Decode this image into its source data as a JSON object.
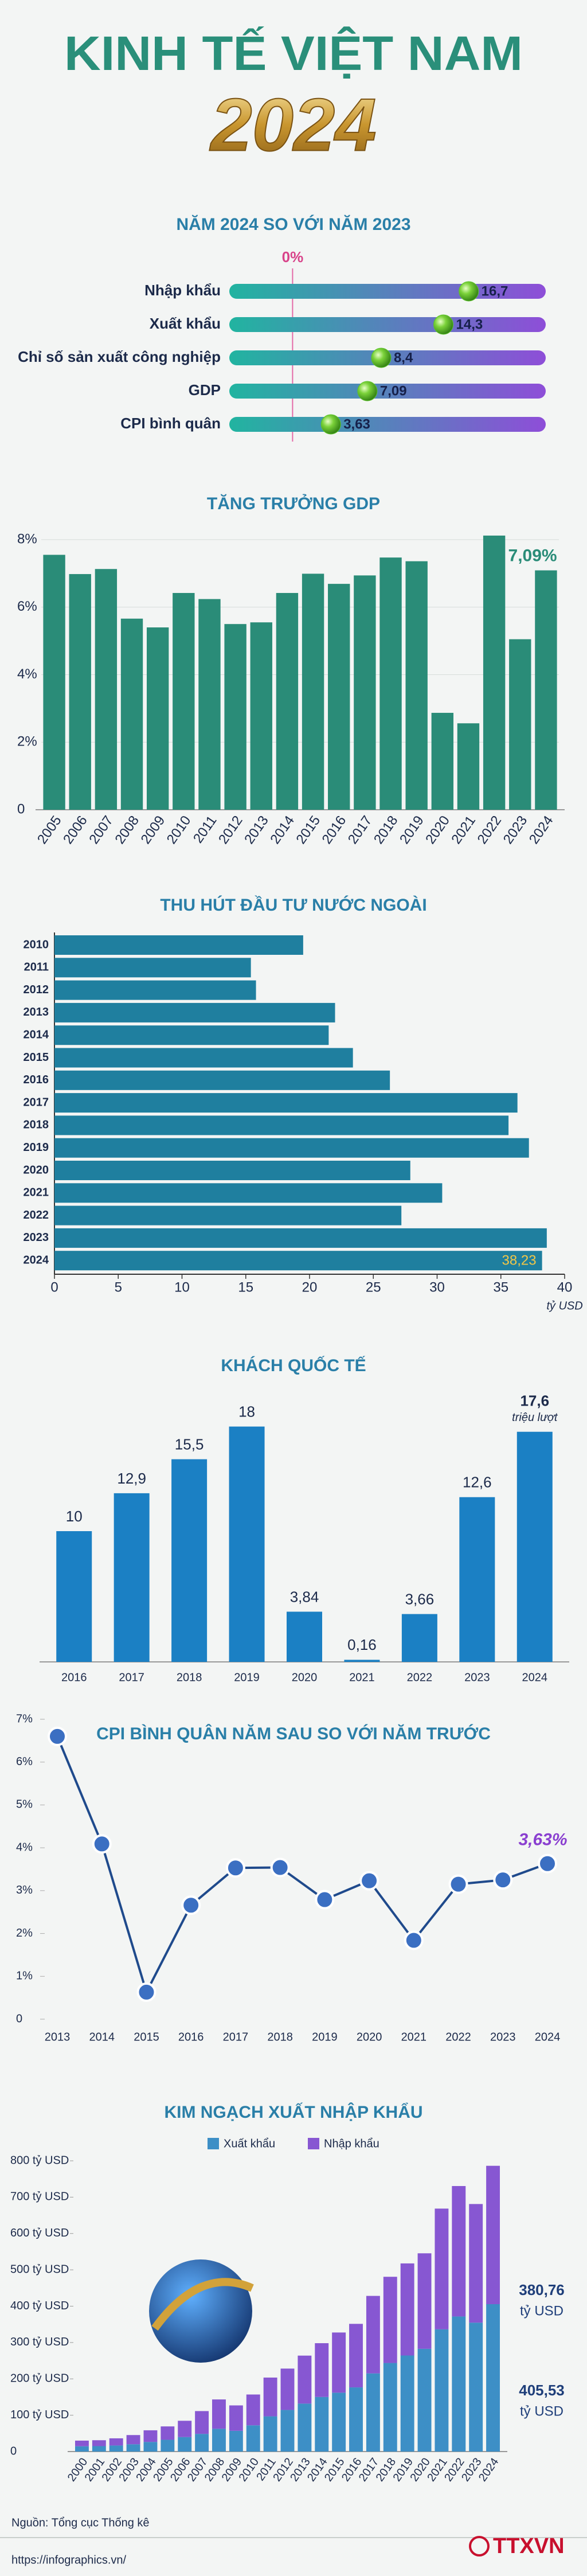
{
  "header": {
    "title": "KINH TẾ VIỆT NAM",
    "year": "2024"
  },
  "chart_data": [
    {
      "type": "dot",
      "title": "NĂM 2024 SO VỚI NĂM 2023",
      "categories": [
        "Nhập khẩu",
        "Xuất khẩu",
        "Chỉ số sản xuất công nghiệp",
        "GDP",
        "CPI bình quân"
      ],
      "values": [
        16.7,
        14.3,
        8.4,
        7.09,
        3.63
      ],
      "value_labels": [
        "16,7",
        "14,3",
        "8,4",
        "7,09",
        "3,63"
      ],
      "xlim": [
        -6,
        24
      ],
      "xticks": [
        {
          "value": 0,
          "label": "0%"
        }
      ],
      "color": "#5cc42a"
    },
    {
      "type": "bar",
      "title": "TĂNG TRƯỞNG GDP",
      "categories": [
        "2005",
        "2006",
        "2007",
        "2008",
        "2009",
        "2010",
        "2011",
        "2012",
        "2013",
        "2014",
        "2015",
        "2016",
        "2017",
        "2018",
        "2019",
        "2020",
        "2021",
        "2022",
        "2023",
        "2024"
      ],
      "values": [
        7.55,
        6.98,
        7.13,
        5.66,
        5.4,
        6.42,
        6.24,
        5.5,
        5.55,
        6.42,
        6.99,
        6.69,
        6.94,
        7.47,
        7.36,
        2.87,
        2.56,
        8.12,
        5.05,
        7.09
      ],
      "value_labels": [
        null,
        null,
        null,
        null,
        null,
        null,
        null,
        null,
        null,
        null,
        null,
        null,
        null,
        null,
        null,
        null,
        null,
        null,
        null,
        "7,09%"
      ],
      "ylim": [
        0,
        8
      ],
      "yticks": [
        0,
        {
          "value": 2,
          "label": "2%"
        },
        {
          "value": 4,
          "label": "4%"
        },
        {
          "value": 6,
          "label": "6%"
        },
        {
          "value": 8,
          "label": "8%"
        }
      ],
      "grid": true,
      "color": "#2a8c78"
    },
    {
      "type": "bar",
      "horizontal": true,
      "title": "THU HÚT ĐẦU TƯ NƯỚC NGOÀI",
      "categories": [
        "2010",
        "2011",
        "2012",
        "2013",
        "2014",
        "2015",
        "2016",
        "2017",
        "2018",
        "2019",
        "2020",
        "2021",
        "2022",
        "2023",
        "2024"
      ],
      "values": [
        19.5,
        15.4,
        15.8,
        22.0,
        21.5,
        23.4,
        26.3,
        36.3,
        35.6,
        37.2,
        27.9,
        30.4,
        27.2,
        38.6,
        38.23
      ],
      "value_labels": [
        null,
        null,
        null,
        null,
        null,
        null,
        null,
        null,
        null,
        null,
        null,
        null,
        null,
        null,
        "38,23"
      ],
      "xlim": [
        0,
        40
      ],
      "xticks": [
        0,
        5,
        10,
        15,
        20,
        25,
        30,
        35,
        40
      ],
      "x_label": "tỷ USD",
      "color": "#1f7f9f"
    },
    {
      "type": "bar",
      "title": "KHÁCH QUỐC TẾ",
      "categories": [
        "2016",
        "2017",
        "2018",
        "2019",
        "2020",
        "2021",
        "2022",
        "2023",
        "2024"
      ],
      "values": [
        10,
        12.9,
        15.5,
        18,
        3.84,
        0.16,
        3.66,
        12.6,
        17.6
      ],
      "value_labels": [
        "10",
        "12,9",
        "15,5",
        "18",
        "3,84",
        "0,16",
        "3,66",
        "12,6",
        "17,6"
      ],
      "value_notes": [
        null,
        null,
        null,
        null,
        null,
        null,
        null,
        null,
        "triệu lượt"
      ],
      "color": "#1b80c4"
    },
    {
      "type": "line",
      "title": "CPI BÌNH QUÂN NĂM SAU SO VỚI NĂM TRƯỚC",
      "categories": [
        "2013",
        "2014",
        "2015",
        "2016",
        "2017",
        "2018",
        "2019",
        "2020",
        "2021",
        "2022",
        "2023",
        "2024"
      ],
      "values": [
        6.6,
        4.09,
        0.63,
        2.66,
        3.53,
        3.54,
        2.79,
        3.23,
        1.84,
        3.15,
        3.25,
        3.63
      ],
      "value_labels": [
        null,
        null,
        null,
        null,
        null,
        null,
        null,
        null,
        null,
        null,
        null,
        "3,63%"
      ],
      "ylim": [
        0,
        7
      ],
      "yticks": [
        0,
        {
          "value": 1,
          "label": "1%"
        },
        {
          "value": 2,
          "label": "2%"
        },
        {
          "value": 3,
          "label": "3%"
        },
        {
          "value": 4,
          "label": "4%"
        },
        {
          "value": 5,
          "label": "5%"
        },
        {
          "value": 6,
          "label": "6%"
        },
        {
          "value": 7,
          "label": "7%"
        }
      ],
      "color": "#1f4a8c"
    },
    {
      "type": "bar",
      "stacked": true,
      "title": "KIM NGẠCH XUẤT NHẬP KHẨU",
      "categories": [
        "2000",
        "2001",
        "2002",
        "2003",
        "2004",
        "2005",
        "2006",
        "2007",
        "2008",
        "2009",
        "2010",
        "2011",
        "2012",
        "2013",
        "2014",
        "2015",
        "2016",
        "2017",
        "2018",
        "2019",
        "2020",
        "2021",
        "2022",
        "2023",
        "2024"
      ],
      "series": [
        {
          "name": "Xuất khẩu",
          "color": "#3d8fc6",
          "values": [
            14.5,
            15.0,
            16.7,
            20.1,
            26.5,
            32.4,
            39.8,
            48.6,
            62.7,
            57.1,
            72.2,
            96.9,
            114.5,
            132.0,
            150.2,
            162.0,
            176.6,
            215.1,
            243.7,
            264.3,
            282.7,
            336.3,
            371.7,
            354.7,
            405.53
          ],
          "value_labels": [
            null,
            null,
            null,
            null,
            null,
            null,
            null,
            null,
            null,
            null,
            null,
            null,
            null,
            null,
            null,
            null,
            null,
            null,
            null,
            null,
            null,
            null,
            null,
            null,
            "405,53"
          ]
        },
        {
          "name": "Nhập khẩu",
          "color": "#8757d2",
          "values": [
            15.6,
            16.2,
            19.7,
            25.3,
            32.0,
            36.8,
            44.9,
            62.8,
            80.7,
            69.9,
            84.8,
            106.7,
            113.8,
            132.0,
            148.0,
            165.6,
            174.8,
            213.2,
            237.2,
            253.4,
            262.8,
            332.2,
            358.9,
            326.4,
            380.76
          ],
          "value_labels": [
            null,
            null,
            null,
            null,
            null,
            null,
            null,
            null,
            null,
            null,
            null,
            null,
            null,
            null,
            null,
            null,
            null,
            null,
            null,
            null,
            null,
            null,
            null,
            null,
            "380,76"
          ]
        }
      ],
      "unit": "tỷ USD",
      "ylim": [
        0,
        800
      ],
      "yticks": [
        0,
        {
          "value": 100,
          "label": "100 tỷ USD"
        },
        {
          "value": 200,
          "label": "200 tỷ USD"
        },
        {
          "value": 300,
          "label": "300 tỷ USD"
        },
        {
          "value": 400,
          "label": "400 tỷ USD"
        },
        {
          "value": 500,
          "label": "500 tỷ USD"
        },
        {
          "value": 600,
          "label": "600 tỷ USD"
        },
        {
          "value": 700,
          "label": "700 tỷ USD"
        },
        {
          "value": 800,
          "label": "800 tỷ USD"
        }
      ],
      "legend": "top"
    }
  ],
  "footer": {
    "source": "Nguồn: Tổng cục Thống kê",
    "url": "https://infographics.vn/",
    "logo": "TTXVN"
  }
}
